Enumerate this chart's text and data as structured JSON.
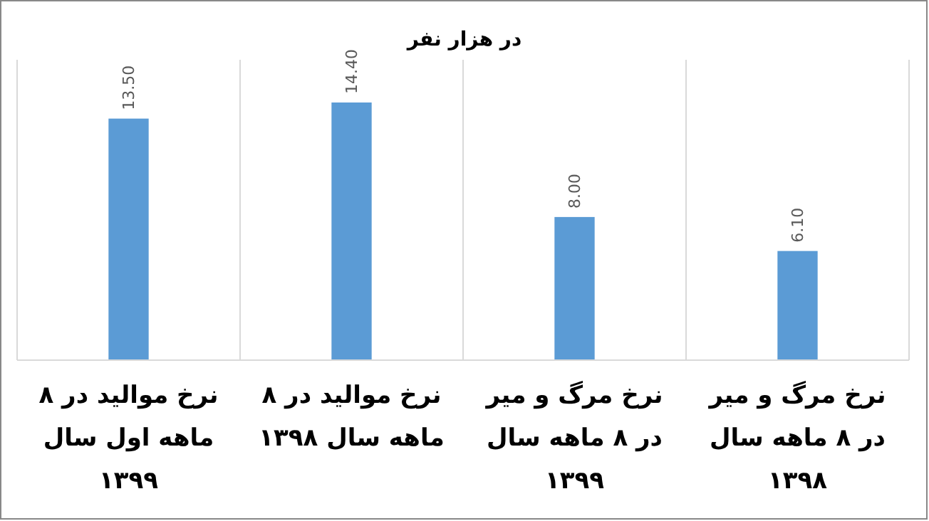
{
  "chart_data": {
    "type": "bar",
    "title": "در هزار نفر",
    "categories": [
      "نرخ موالید در ۸ ماهه اول سال ۱۳۹۹",
      "نرخ موالید در ۸ ماهه سال ۱۳۹۸",
      "نرخ مرگ و میر در ۸ ماهه سال ۱۳۹۹",
      "نرخ مرگ و میر در ۸ ماهه سال ۱۳۹۸"
    ],
    "values": [
      13.5,
      14.4,
      8.0,
      6.1
    ],
    "value_labels": [
      "13.50",
      "14.40",
      "8.00",
      "6.10"
    ],
    "color": "#5b9bd5",
    "grid": "x",
    "tick_labels": "x"
  }
}
